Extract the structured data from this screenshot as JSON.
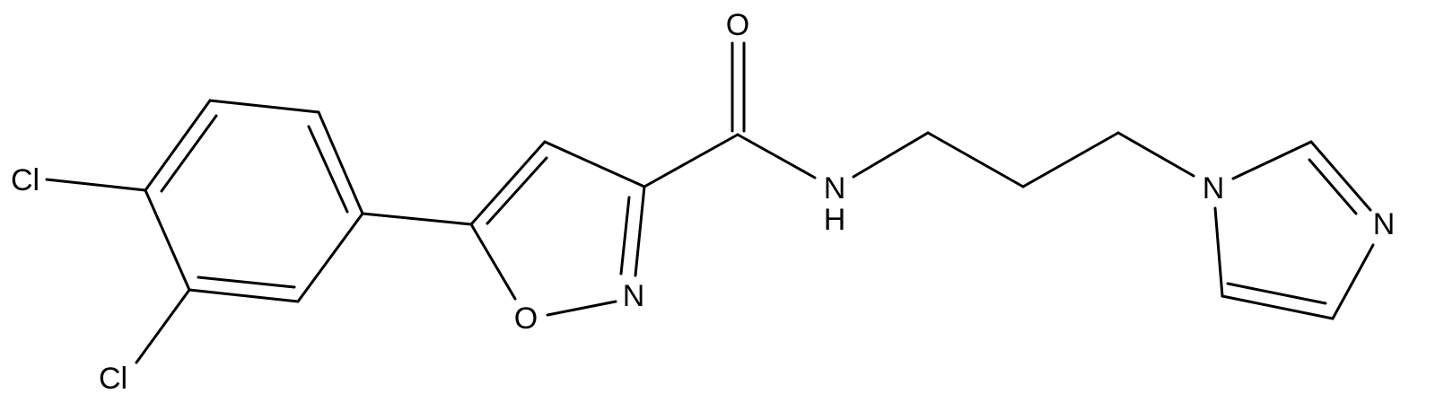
{
  "atoms": [
    {
      "label": "Cl"
    },
    {
      "label": "Cl"
    },
    {
      "label": "O"
    },
    {
      "label": "N"
    },
    {
      "label": "O"
    },
    {
      "label": "N"
    },
    {
      "label": "H"
    },
    {
      "label": "N"
    },
    {
      "label": "N"
    }
  ]
}
